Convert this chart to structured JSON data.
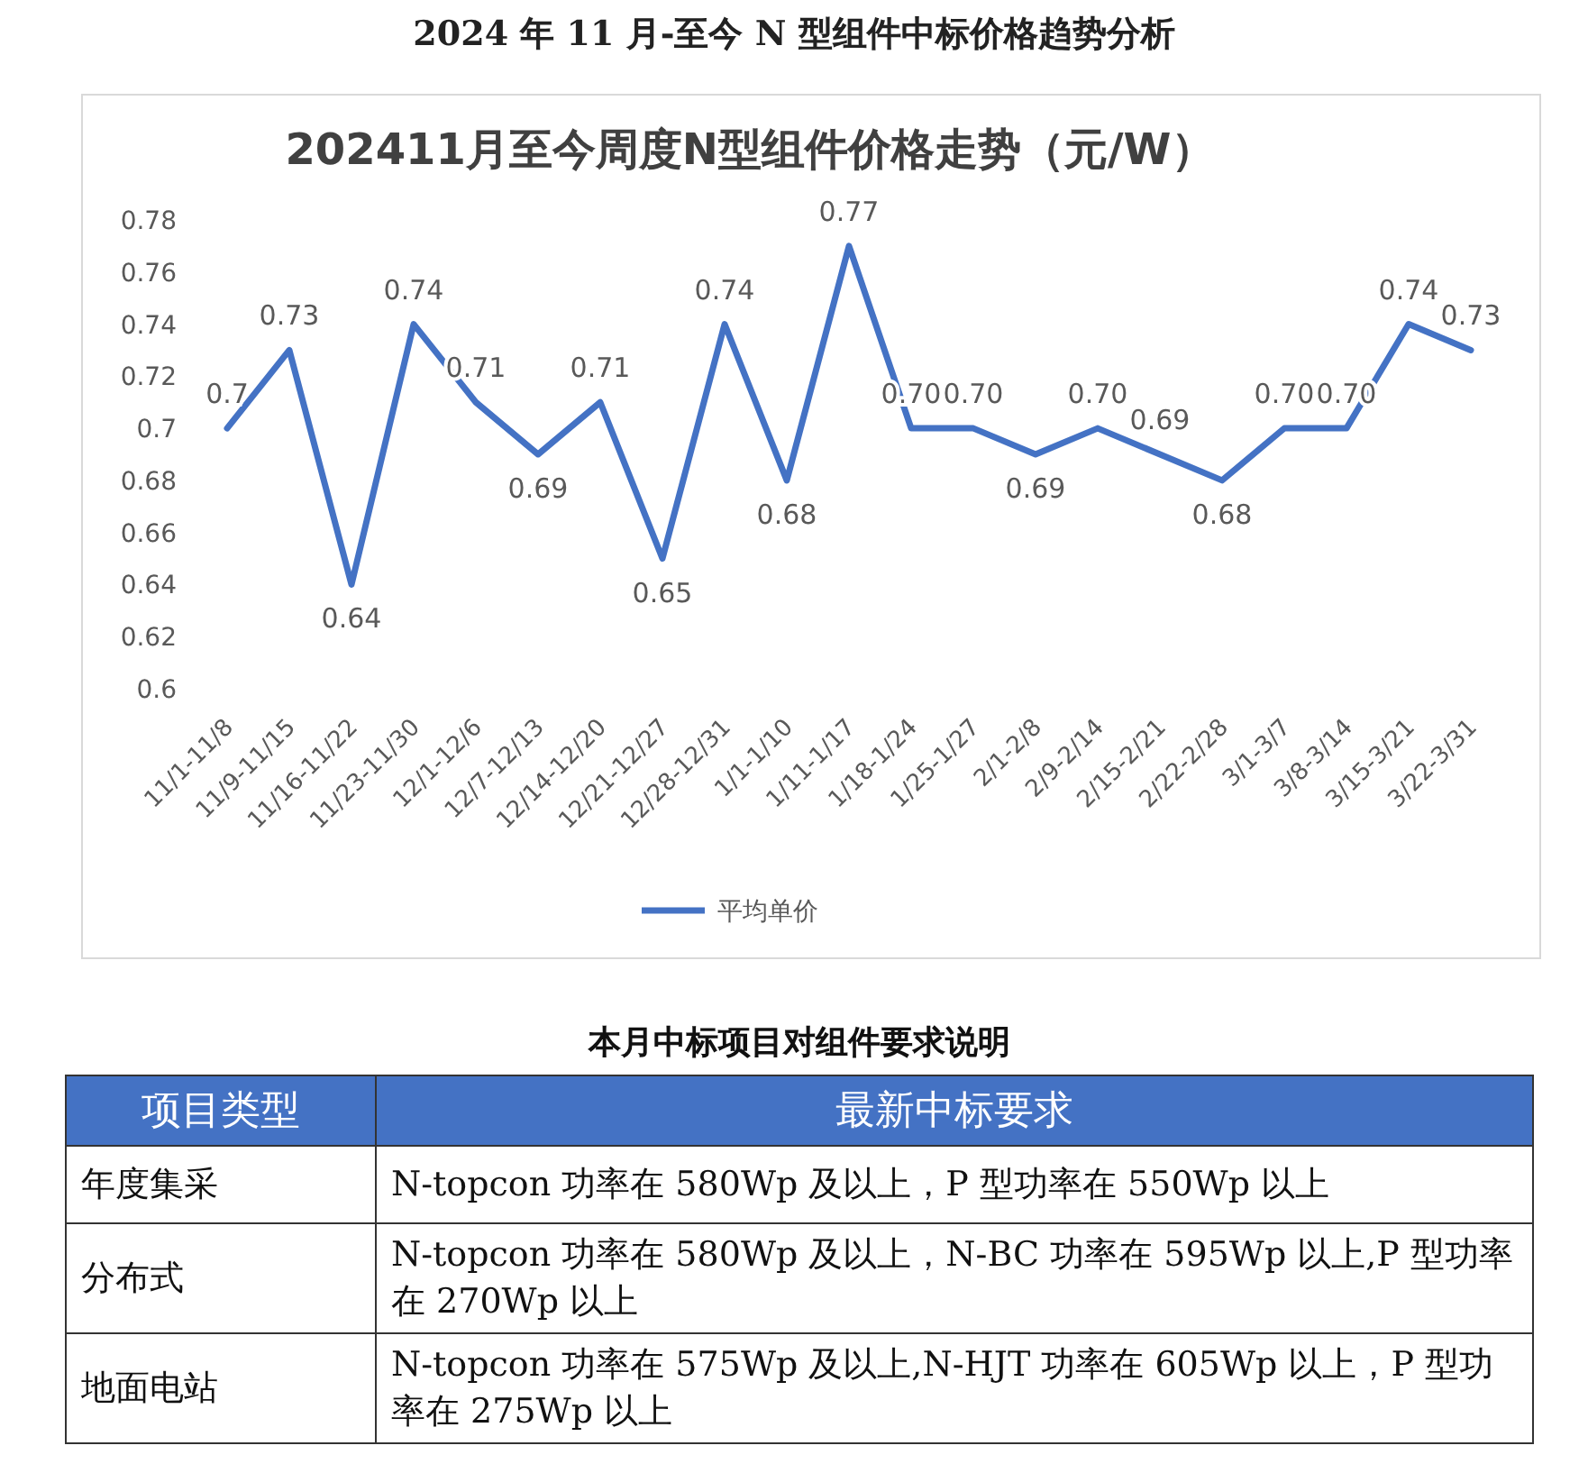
{
  "chart_data": [
    {
      "type": "line",
      "title": "202411月至今周度N型组件价格走势（元/W）",
      "annotations": [
        "2024 年 11 月-至今 N 型组件中标价格趋势分析"
      ],
      "categories": [
        "11/1-11/8",
        "11/9-11/15",
        "11/16-11/22",
        "11/23-11/30",
        "12/1-12/6",
        "12/7-12/13",
        "12/14-12/20",
        "12/21-12/27",
        "12/28-12/31",
        "1/1-1/10",
        "1/11-1/17",
        "1/18-1/24",
        "1/25-1/27",
        "2/1-2/8",
        "2/9-2/14",
        "2/15-2/21",
        "2/22-2/28",
        "3/1-3/7",
        "3/8-3/14",
        "3/15-3/21",
        "3/22-3/31"
      ],
      "series": [
        {
          "name": "平均单价",
          "color": "#4472c4",
          "values": [
            0.7,
            0.73,
            0.64,
            0.74,
            0.71,
            0.69,
            0.71,
            0.65,
            0.74,
            0.68,
            0.77,
            0.7,
            0.7,
            0.69,
            0.7,
            0.69,
            0.68,
            0.7,
            0.7,
            0.74,
            0.73
          ],
          "value_labels": [
            "0.7",
            "0.73",
            "0.64",
            "0.74",
            "0.71",
            "0.69",
            "0.71",
            "0.65",
            "0.74",
            "0.68",
            "0.77",
            "0.70",
            "0.70",
            "0.69",
            "0.70",
            "0.69",
            "0.68",
            "0.70",
            "0.70",
            "0.74",
            "0.73"
          ]
        }
      ],
      "ylim": [
        0.6,
        0.78
      ],
      "yticks": [
        0.6,
        0.62,
        0.64,
        0.66,
        0.68,
        0.7,
        0.72,
        0.74,
        0.76,
        0.78
      ],
      "legend": "bottom",
      "marker": "none",
      "line_style": "solid"
    },
    {
      "type": "other",
      "title": "本月中标项目对组件要求说明",
      "annotations": [
        "项目类型",
        "最新中标要求",
        "年度集采",
        "N-topcon 功率在 580Wp 及以上，P 型功率在 550Wp 以上",
        "分布式",
        "N-topcon 功率在 580Wp 及以上，N-BC 功率在 595Wp 以上,P 型功率在 270Wp 以上",
        "地面电站",
        "N-topcon 功率在 575Wp 及以上,N-HJT 功率在 605Wp 以上，P 型功率在 275Wp 以上"
      ]
    }
  ]
}
